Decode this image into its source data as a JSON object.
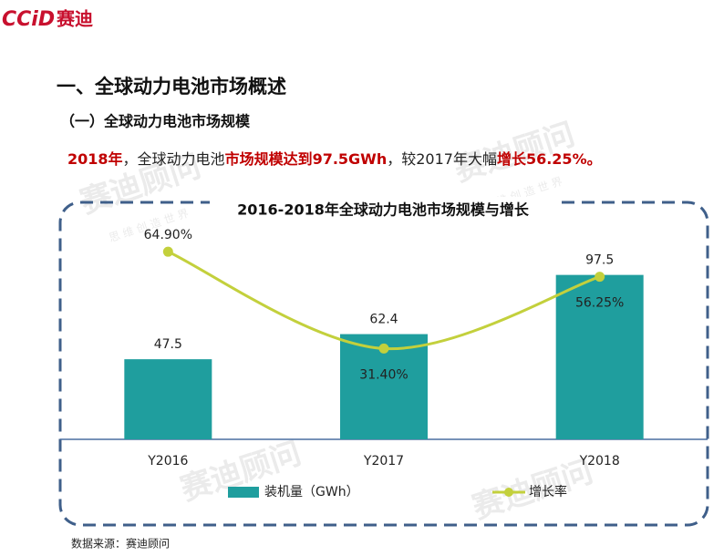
{
  "header": {
    "logo_mark": "CCiD",
    "logo_text": "赛迪"
  },
  "heading": "一、全球动力电池市场概述",
  "subheading": "（一）全球动力电池市场规模",
  "summary": [
    "2018年",
    "，全球动力电池",
    "市场规模达到97.5GWh",
    "，较2017年大幅",
    "增长56.25%。"
  ],
  "watermark": {
    "name": "赛迪顾问",
    "slogan": "思 维 创 造 世 界"
  },
  "source": "数据来源：赛迪顾问",
  "chart_data": {
    "type": "bar",
    "title": "2016-2018年全球动力电池市场规模与增长",
    "categories": [
      "Y2016",
      "Y2017",
      "Y2018"
    ],
    "series": [
      {
        "name": "装机量（GWh）",
        "color": "#1f9e9e",
        "values": [
          47.5,
          62.4,
          97.5
        ]
      },
      {
        "name": "增长率",
        "type": "line",
        "axis": "y2",
        "color": "#c3d03c",
        "values": [
          64.9,
          31.4,
          56.25
        ],
        "value_labels": [
          "64.90%",
          "31.40%",
          "56.25%"
        ]
      }
    ],
    "ylim": [
      0,
      120
    ],
    "y2lim": [
      0,
      70
    ],
    "legend": "bottom"
  }
}
